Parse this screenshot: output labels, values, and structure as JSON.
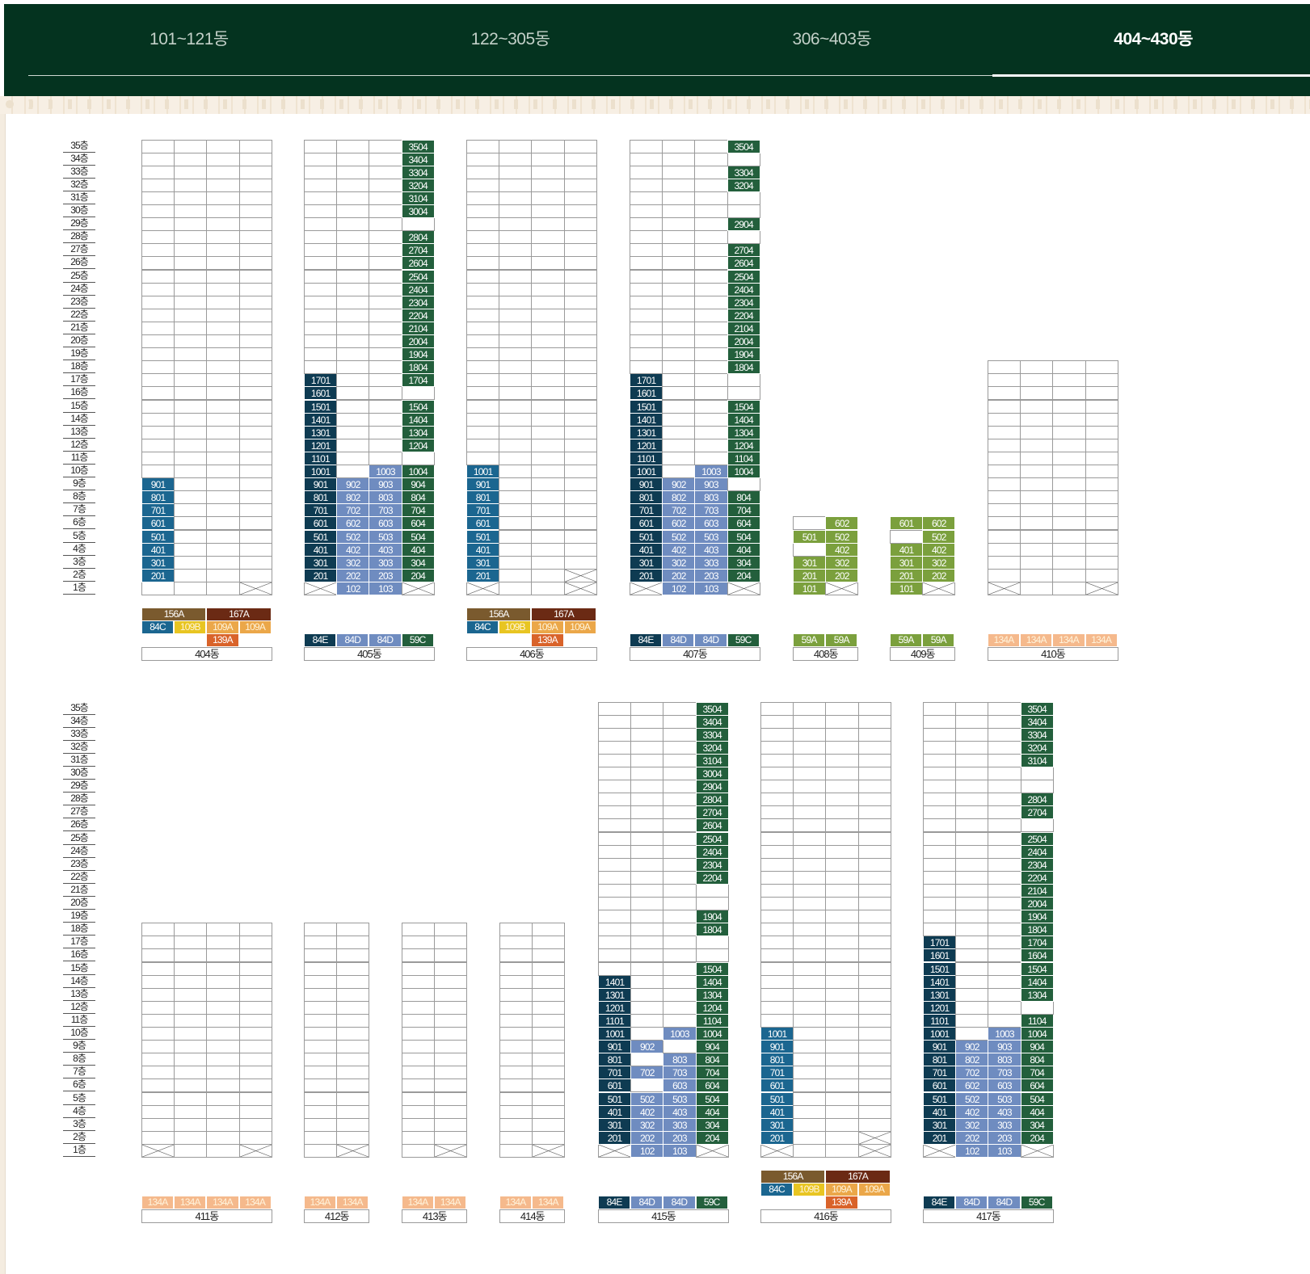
{
  "tabs": [
    {
      "label": "101~121동",
      "active": false
    },
    {
      "label": "122~305동",
      "active": false
    },
    {
      "label": "306~403동",
      "active": false
    },
    {
      "label": "404~430동",
      "active": true
    }
  ],
  "colors": {
    "header_bg": "#04331f",
    "84C": "#1b6690",
    "84E": "#0e3b52",
    "84D": "#6f8cc0",
    "59C": "#235f3c",
    "59A": "#7ba03d",
    "156A": "#7a5a2e",
    "167A": "#6b2a14",
    "109B": "#e8c522",
    "109A": "#eba749",
    "139A": "#d9632a",
    "134A": "#f5b98c"
  },
  "floor_labels": [
    "35층",
    "34층",
    "33층",
    "32층",
    "31층",
    "30층",
    "29층",
    "28층",
    "27층",
    "26층",
    "25층",
    "24층",
    "23층",
    "22층",
    "21층",
    "20층",
    "19층",
    "18층",
    "17층",
    "16층",
    "15층",
    "14층",
    "13층",
    "12층",
    "11층",
    "10층",
    "9층",
    "8층",
    "7층",
    "6층",
    "5층",
    "4층",
    "3층",
    "2층",
    "1층"
  ],
  "unit_types": {
    "A": [
      [
        "84C",
        1
      ],
      [
        "109B",
        1
      ],
      [
        "109A",
        1
      ],
      [
        "109A",
        1
      ]
    ],
    "A_top": [
      [
        "156A",
        2
      ],
      [
        "167A",
        2
      ]
    ],
    "A_bottom": [
      [
        "139A",
        1
      ]
    ],
    "B": [
      [
        "84E",
        1
      ],
      [
        "84D",
        1
      ],
      [
        "84D",
        1
      ],
      [
        "59C",
        1
      ]
    ],
    "C": [
      [
        "59A",
        1
      ],
      [
        "59A",
        1
      ]
    ],
    "D4": [
      [
        "134A",
        1
      ],
      [
        "134A",
        1
      ],
      [
        "134A",
        1
      ],
      [
        "134A",
        1
      ]
    ],
    "D2": [
      [
        "134A",
        1
      ],
      [
        "134A",
        1
      ]
    ]
  },
  "buildings": [
    {
      "name": "404동",
      "row": 0,
      "floors": 35,
      "cols": 4,
      "types": "A",
      "units": [
        {
          "col": 0,
          "from": 2,
          "to": 9,
          "type": "84C"
        }
      ],
      "blocked": [
        [
          1,
          3
        ]
      ]
    },
    {
      "name": "405동",
      "row": 0,
      "floors": 35,
      "cols": 4,
      "types": "B",
      "units": [
        {
          "col": 0,
          "from": 2,
          "to": 17,
          "type": "84E"
        },
        {
          "col": 1,
          "from": 1,
          "to": 9,
          "type": "84D"
        },
        {
          "col": 2,
          "from": 1,
          "to": 10,
          "type": "84D"
        },
        {
          "col": 3,
          "from": 2,
          "to": 35,
          "type": "59C",
          "skip": [
            29,
            16,
            11
          ]
        }
      ],
      "blocked": [
        [
          1,
          0
        ],
        [
          1,
          3
        ]
      ]
    },
    {
      "name": "406동",
      "row": 0,
      "floors": 35,
      "cols": 4,
      "types": "A",
      "units": [
        {
          "col": 0,
          "from": 2,
          "to": 10,
          "type": "84C"
        }
      ],
      "blocked": [
        [
          1,
          0
        ],
        [
          1,
          3
        ],
        [
          2,
          3
        ]
      ]
    },
    {
      "name": "407동",
      "row": 0,
      "floors": 35,
      "cols": 4,
      "types": "B",
      "units": [
        {
          "col": 0,
          "from": 2,
          "to": 17,
          "type": "84E"
        },
        {
          "col": 1,
          "from": 1,
          "to": 9,
          "type": "84D"
        },
        {
          "col": 2,
          "from": 1,
          "to": 10,
          "type": "84D"
        },
        {
          "col": 3,
          "from": 2,
          "to": 35,
          "type": "59C",
          "skip": [
            34,
            31,
            30,
            28,
            17,
            16,
            9
          ]
        }
      ],
      "blocked": [
        [
          1,
          0
        ],
        [
          1,
          3
        ]
      ]
    },
    {
      "name": "408동",
      "row": 0,
      "floors": 6,
      "cols": 2,
      "types": "C",
      "units": [
        {
          "col": 0,
          "from": 1,
          "to": 5,
          "type": "59A",
          "skip": [
            4
          ]
        },
        {
          "col": 1,
          "from": 2,
          "to": 6,
          "type": "59A"
        }
      ],
      "blocked": [
        [
          1,
          1
        ]
      ]
    },
    {
      "name": "409동",
      "row": 0,
      "floors": 6,
      "cols": 2,
      "types": "C",
      "units": [
        {
          "col": 0,
          "from": 1,
          "to": 6,
          "type": "59A",
          "skip": [
            5
          ]
        },
        {
          "col": 1,
          "from": 2,
          "to": 6,
          "type": "59A"
        }
      ],
      "blocked": [
        [
          1,
          1
        ]
      ]
    },
    {
      "name": "410동",
      "row": 0,
      "floors": 18,
      "cols": 4,
      "types": "D4",
      "units": [],
      "blocked": [
        [
          1,
          0
        ],
        [
          1,
          3
        ]
      ]
    },
    {
      "name": "411동",
      "row": 1,
      "floors": 18,
      "cols": 4,
      "types": "D4",
      "units": [],
      "blocked": [
        [
          1,
          0
        ],
        [
          1,
          3
        ]
      ]
    },
    {
      "name": "412동",
      "row": 1,
      "floors": 18,
      "cols": 2,
      "types": "D2",
      "units": [],
      "blocked": [
        [
          1,
          1
        ]
      ]
    },
    {
      "name": "413동",
      "row": 1,
      "floors": 18,
      "cols": 2,
      "types": "D2",
      "units": [],
      "blocked": [
        [
          1,
          1
        ]
      ]
    },
    {
      "name": "414동",
      "row": 1,
      "floors": 18,
      "cols": 2,
      "types": "D2",
      "units": [],
      "blocked": [
        [
          1,
          1
        ]
      ]
    },
    {
      "name": "415동",
      "row": 1,
      "floors": 35,
      "cols": 4,
      "types": "B",
      "units": [
        {
          "col": 0,
          "from": 2,
          "to": 14,
          "type": "84E"
        },
        {
          "col": 1,
          "from": 1,
          "to": 9,
          "type": "84D",
          "skip": [
            8,
            6
          ]
        },
        {
          "col": 2,
          "from": 1,
          "to": 10,
          "type": "84D",
          "skip": [
            9
          ]
        },
        {
          "col": 3,
          "from": 2,
          "to": 35,
          "type": "59C",
          "skip": [
            21,
            20,
            17,
            16
          ]
        }
      ],
      "blocked": [
        [
          1,
          0
        ],
        [
          1,
          3
        ]
      ]
    },
    {
      "name": "416동",
      "row": 1,
      "floors": 35,
      "cols": 4,
      "types": "A",
      "units": [
        {
          "col": 0,
          "from": 2,
          "to": 10,
          "type": "84C"
        }
      ],
      "blocked": [
        [
          1,
          0
        ],
        [
          1,
          3
        ],
        [
          2,
          3
        ]
      ]
    },
    {
      "name": "417동",
      "row": 1,
      "floors": 35,
      "cols": 4,
      "types": "B",
      "units": [
        {
          "col": 0,
          "from": 2,
          "to": 17,
          "type": "84E"
        },
        {
          "col": 1,
          "from": 1,
          "to": 9,
          "type": "84D"
        },
        {
          "col": 2,
          "from": 1,
          "to": 10,
          "type": "84D"
        },
        {
          "col": 3,
          "from": 2,
          "to": 35,
          "type": "59C",
          "skip": [
            30,
            29,
            26,
            12
          ]
        }
      ],
      "blocked": [
        [
          1,
          0
        ],
        [
          1,
          3
        ]
      ]
    }
  ]
}
